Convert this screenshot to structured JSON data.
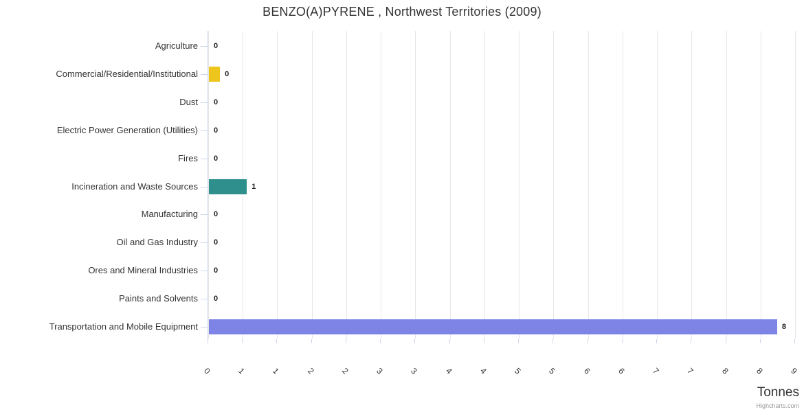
{
  "header": {
    "title": "BENZO(A)PYRENE , Northwest Territories (2009)"
  },
  "chart_data": {
    "type": "bar",
    "orientation": "horizontal",
    "title": "BENZO(A)PYRENE , Northwest Territories (2009)",
    "xlabel": "Tonnes",
    "ylabel": "",
    "categories": [
      "Agriculture",
      "Commercial/Residential/Institutional",
      "Dust",
      "Electric Power Generation (Utilities)",
      "Fires",
      "Incineration and Waste Sources",
      "Manufacturing",
      "Oil and Gas Industry",
      "Ores and Mineral Industries",
      "Paints and Solvents",
      "Transportation and Mobile Equipment"
    ],
    "values": [
      0,
      0.16,
      0,
      0,
      0,
      0.55,
      0,
      0,
      0,
      0,
      8.23
    ],
    "value_labels": [
      "0",
      "0",
      "0",
      "0",
      "0",
      "1",
      "0",
      "0",
      "0",
      "0",
      "8"
    ],
    "bar_colors": [
      null,
      "#EDC51C",
      null,
      null,
      null,
      "#2E8F8C",
      null,
      null,
      null,
      null,
      "#7E84E5"
    ],
    "xlim": [
      0,
      8.52
    ],
    "xticks": {
      "values": [
        0,
        0.5,
        1,
        1.5,
        2,
        2.5,
        3,
        3.5,
        4,
        4.5,
        5,
        5.5,
        6,
        6.5,
        7,
        7.5,
        8,
        8.5
      ],
      "labels": [
        "0",
        "1",
        "1",
        "2",
        "2",
        "3",
        "3",
        "4",
        "4",
        "5",
        "5",
        "6",
        "6",
        "7",
        "7",
        "8",
        "8",
        "9"
      ]
    },
    "grid": true,
    "legend": false
  },
  "footer": {
    "credits": "Highcharts.com"
  },
  "colors": {
    "grid": "#e6e6e6",
    "axis": "#ccd6eb",
    "text": "#333333",
    "data_label": "#222222",
    "credits_text": "#999999"
  }
}
